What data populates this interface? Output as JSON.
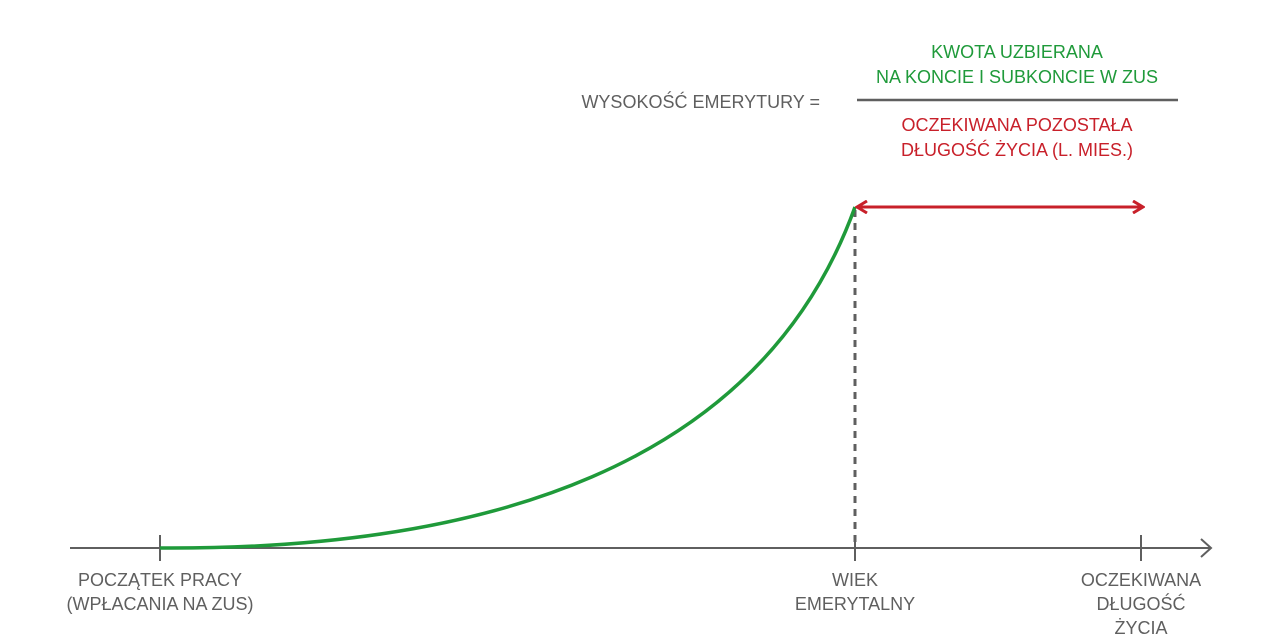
{
  "formula": {
    "label": "WYSOKOŚĆ EMERYTURY =",
    "numerator": [
      "KWOTA UZBIERANA",
      "NA KONCIE I SUBKONCIE W ZUS"
    ],
    "denominator": [
      "OCZEKIWANA POZOSTAŁA",
      "DŁUGOŚĆ ŻYCIA (L. MIES.)"
    ]
  },
  "axis_labels": [
    {
      "lines": [
        "POCZĄTEK PRACY",
        "(WPŁACANIA NA ZUS)"
      ]
    },
    {
      "lines": [
        "WIEK",
        "EMERYTALNY"
      ]
    },
    {
      "lines": [
        "OCZEKIWANA",
        "DŁUGOŚĆ",
        "ŻYCIA"
      ]
    }
  ]
}
